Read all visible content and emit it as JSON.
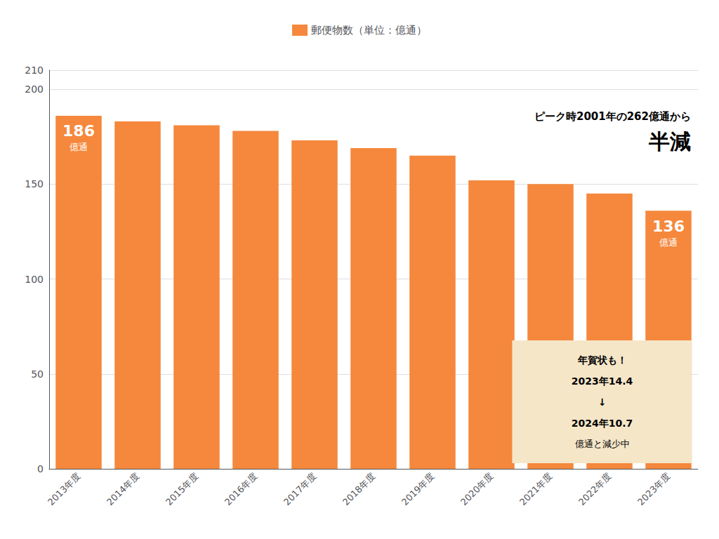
{
  "chart_data": {
    "type": "bar",
    "categories": [
      "2013年度",
      "2014年度",
      "2015年度",
      "2016年度",
      "2017年度",
      "2018年度",
      "2019年度",
      "2020年度",
      "2021年度",
      "2022年度",
      "2023年度"
    ],
    "series": [
      {
        "name": "郵便物数（単位：億通）",
        "color": "#F5883C",
        "values": [
          186,
          183,
          181,
          178,
          173,
          169,
          165,
          152,
          150,
          145,
          136
        ]
      }
    ],
    "ylim": [
      0,
      210
    ],
    "yticks": [
      0,
      50,
      100,
      150,
      200
    ],
    "grid": true,
    "legend": "top",
    "annotations": [
      {
        "category": "2013年度",
        "text": "186",
        "subtext": "億通",
        "color": "#ffffff"
      },
      {
        "category": "2023年度",
        "text": "136",
        "subtext": "億通",
        "color": "#ffffff"
      },
      {
        "lines": [
          [
            {
              "text": "ピーク時2001年の",
              "color": "#1a1a1a"
            },
            {
              "text": "262",
              "color": "#E8312A"
            },
            {
              "text": "億通から",
              "color": "#1a1a1a"
            }
          ],
          [
            {
              "text": "半減",
              "color": "#1a1a1a"
            }
          ]
        ]
      },
      {
        "box_color": "#F5E6C8",
        "lines": [
          [
            {
              "text": "年賀状も！",
              "color": "#1a1a1a"
            }
          ],
          [
            {
              "text": "2023年",
              "color": "#1a1a1a"
            },
            {
              "text": "14.4",
              "color": "#E8312A"
            }
          ],
          [
            {
              "text": "↓",
              "color": "#1a1a1a"
            }
          ],
          [
            {
              "text": "2024年",
              "color": "#1a1a1a"
            },
            {
              "text": "10.7",
              "color": "#E8312A"
            }
          ],
          [
            {
              "text": "億通と減少中",
              "color": "#1a1a1a"
            }
          ]
        ]
      }
    ]
  }
}
